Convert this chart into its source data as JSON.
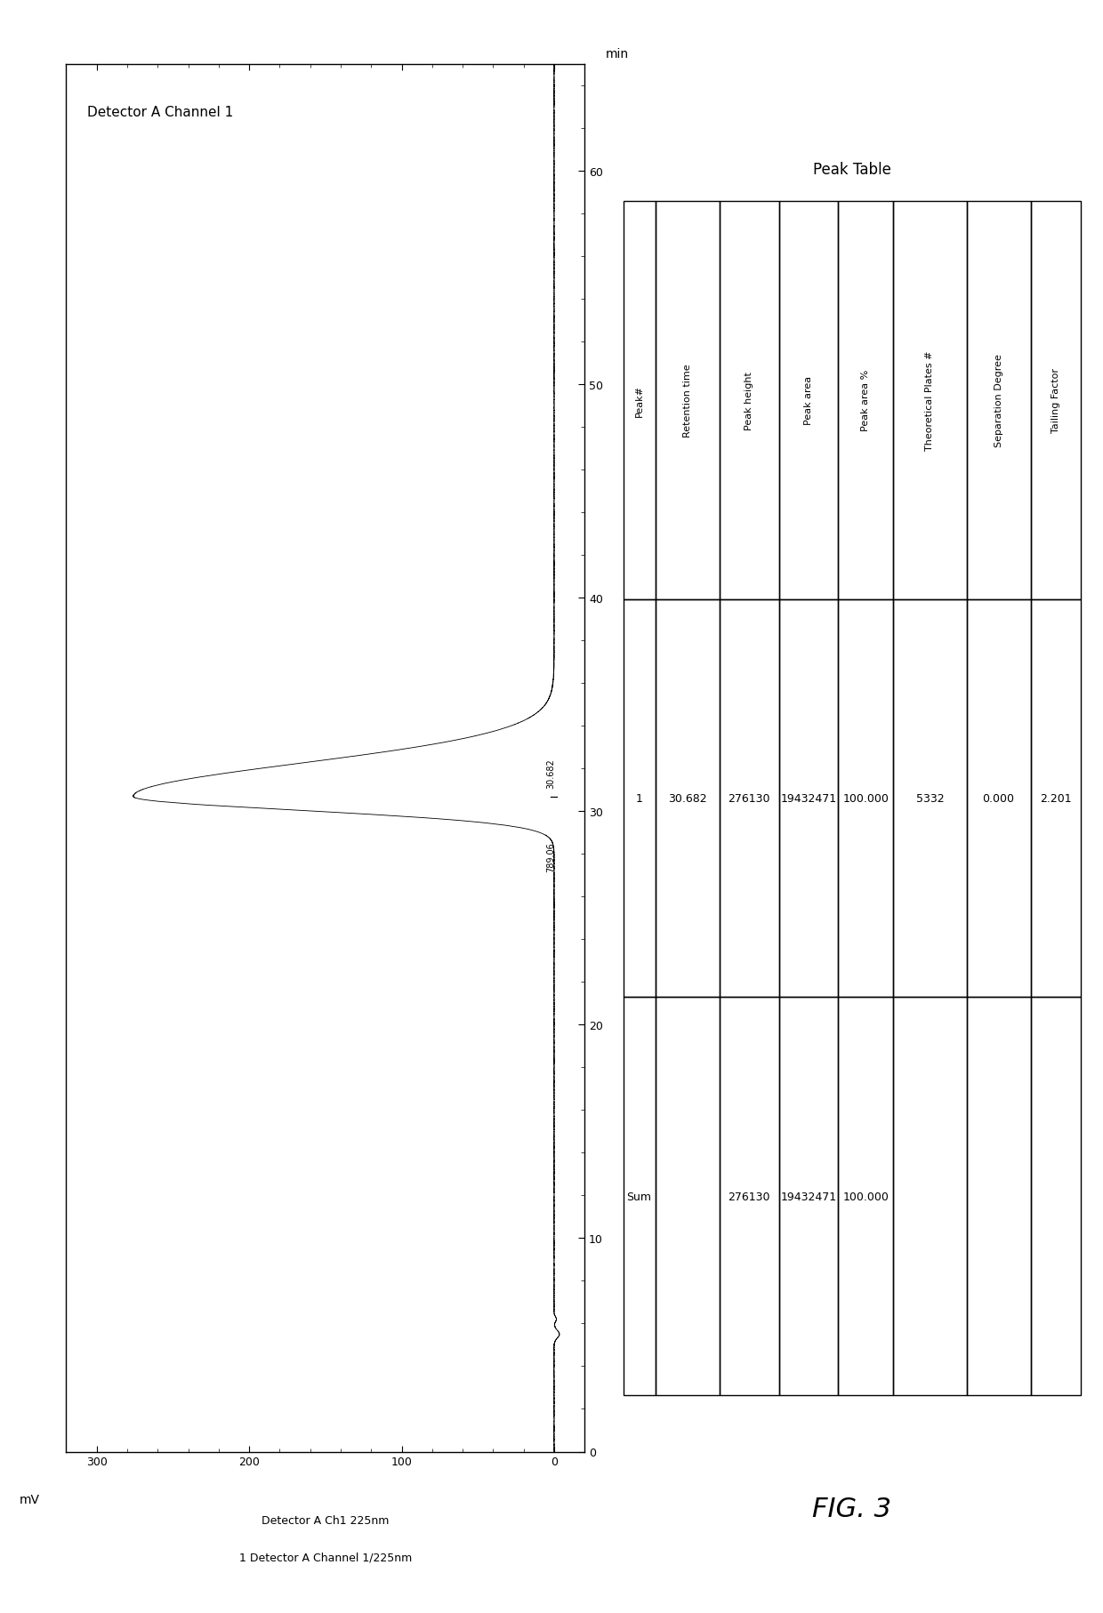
{
  "title_chromatogram": "Detector A Channel 1",
  "xlabel_chrom": "1 Detector A Channel 1/225nm",
  "xlabel_chrom2": "Detector A Ch1 225nm",
  "ylabel_chrom": "mV",
  "time_label": "min",
  "x_ticks_time": [
    0,
    10,
    20,
    30,
    40,
    50,
    60
  ],
  "y_ticks_mV": [
    0,
    100,
    200,
    300
  ],
  "xlim_mV": [
    320,
    -20
  ],
  "ylim_time": [
    0,
    65
  ],
  "peak_time": 30.682,
  "peak_height_mV": 276,
  "peak_annotation1": "30.682",
  "peak_annotation2": "789.06",
  "figure_label": "FIG. 3",
  "peak_table_title": "Peak Table",
  "col_headers": [
    "Peak#",
    "Retention time",
    "Peak height",
    "Peak area",
    "Peak area %",
    "Theoretical Plates #",
    "Separation Degree",
    "Tailing Factor"
  ],
  "table_row1": [
    "1",
    "30.682",
    "276130",
    "19432471",
    "100.000",
    "5332",
    "0.000",
    "2.201"
  ],
  "table_row_sum": [
    "Sum",
    "",
    "276130",
    "19432471",
    "100.000",
    "",
    "",
    ""
  ],
  "bg_color": "#ffffff",
  "line_color": "#000000",
  "col_widths_rel": [
    0.07,
    0.14,
    0.13,
    0.13,
    0.12,
    0.16,
    0.14,
    0.11
  ]
}
